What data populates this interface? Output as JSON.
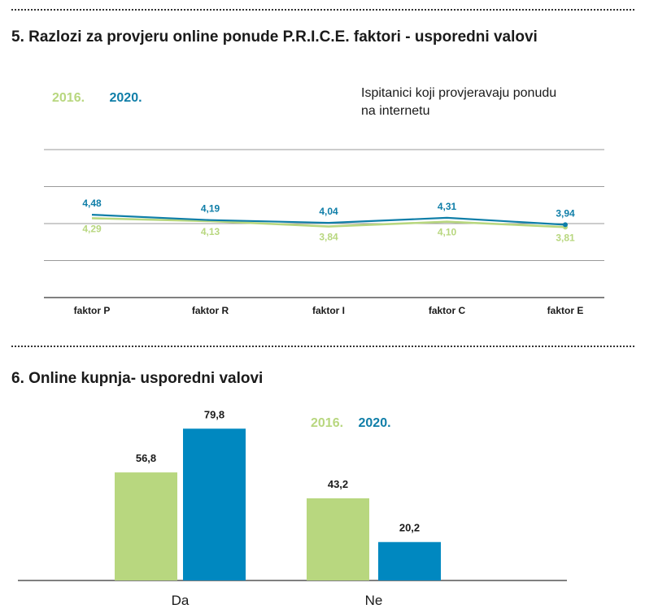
{
  "colors": {
    "y2016": "#b8d77f",
    "y2020": "#0f7ea8",
    "y2020_bar": "#0088c0",
    "grid": "#9a9a9a",
    "axis": "#000000"
  },
  "section5": {
    "title": "5. Razlozi za provjeru online ponude P.R.I.C.E. faktori - usporedni valovi",
    "legend": [
      "2016.",
      "2020."
    ],
    "note": "Ispitanici koji provjeravaju ponudu na internetu"
  },
  "section6": {
    "title": "6. Online kupnja- usporedni valovi",
    "legend": [
      "2016.",
      "2020."
    ]
  },
  "chart_data": [
    {
      "type": "line",
      "categories": [
        "faktor P",
        "faktor R",
        "faktor I",
        "faktor C",
        "faktor E"
      ],
      "series": [
        {
          "name": "2016.",
          "values": [
            4.29,
            4.13,
            3.84,
            4.1,
            3.81
          ],
          "labels": [
            "4,29",
            "4,13",
            "3,84",
            "4,10",
            "3,81"
          ],
          "color": "#b8d77f"
        },
        {
          "name": "2020.",
          "values": [
            4.48,
            4.19,
            4.04,
            4.31,
            3.94
          ],
          "labels": [
            "4,48",
            "4,19",
            "4,04",
            "4,31",
            "3,94"
          ],
          "color": "#0f7ea8"
        }
      ],
      "ylim": [
        0,
        8
      ],
      "grid": true,
      "legend": "top-left"
    },
    {
      "type": "bar",
      "categories": [
        "Da",
        "Ne"
      ],
      "series": [
        {
          "name": "2016.",
          "values": [
            56.8,
            43.2
          ],
          "labels": [
            "56,8",
            "43,2"
          ],
          "color": "#b8d77f"
        },
        {
          "name": "2020.",
          "values": [
            79.8,
            20.2
          ],
          "labels": [
            "79,8",
            "20,2"
          ],
          "color": "#0088c0"
        }
      ],
      "ylim": [
        0,
        80
      ],
      "legend": "top-right"
    }
  ]
}
